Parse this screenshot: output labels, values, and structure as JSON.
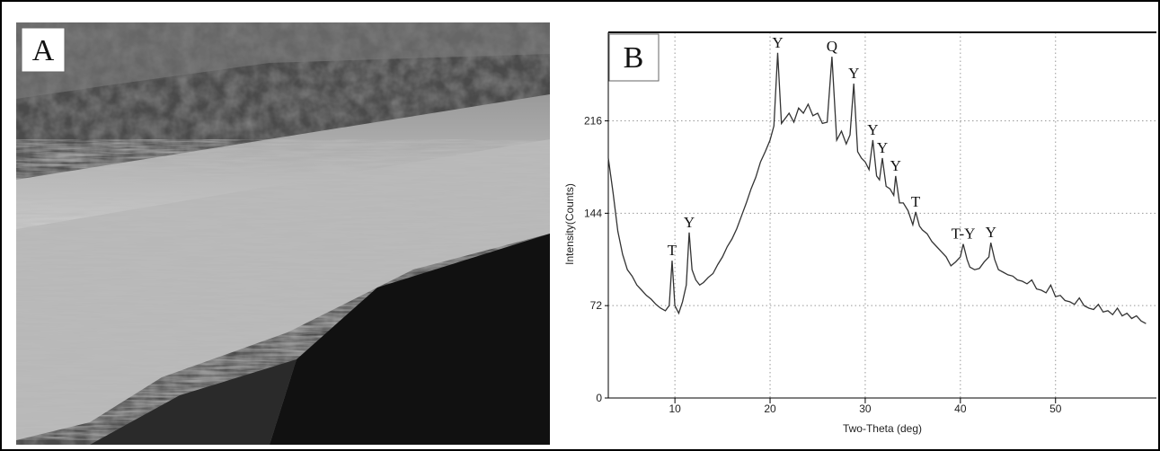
{
  "panel_a": {
    "label": "A"
  },
  "chart_data": {
    "type": "line",
    "panel_label": "B",
    "x_label": "Two-Theta (deg)",
    "y_label": "Intensity(Counts)",
    "color": "#333333",
    "xlim": [
      3,
      60.6
    ],
    "ylim": [
      0,
      285
    ],
    "xticks": [
      10,
      20,
      30,
      40,
      50
    ],
    "yticks": [
      0,
      72,
      144,
      216
    ],
    "grid": true,
    "x": [
      3,
      3.5,
      4,
      4.5,
      5,
      5.5,
      6,
      6.5,
      7,
      7.5,
      8,
      8.5,
      9,
      9.4,
      9.7,
      10,
      10.4,
      10.8,
      11.2,
      11.5,
      11.8,
      12.2,
      12.6,
      13,
      13.5,
      14,
      14.5,
      15,
      15.5,
      16,
      16.5,
      17,
      17.5,
      18,
      18.5,
      19,
      19.5,
      20,
      20.4,
      20.8,
      21.2,
      21.6,
      22,
      22.5,
      23,
      23.5,
      24,
      24.5,
      25,
      25.5,
      26,
      26.5,
      27,
      27.5,
      28,
      28.4,
      28.8,
      29.2,
      29.6,
      30,
      30.4,
      30.8,
      31.2,
      31.5,
      31.8,
      32.2,
      32.6,
      33,
      33.2,
      33.6,
      34,
      34.5,
      35,
      35.3,
      35.7,
      36,
      36.5,
      37,
      37.5,
      38,
      38.5,
      39,
      39.5,
      40,
      40.3,
      40.7,
      41,
      41.5,
      42,
      42.5,
      43,
      43.2,
      43.6,
      44,
      44.5,
      45,
      45.5,
      46,
      46.5,
      47,
      47.5,
      48,
      48.5,
      49,
      49.5,
      50,
      50.5,
      51,
      51.5,
      52,
      52.5,
      53,
      53.5,
      54,
      54.5,
      55,
      55.5,
      56,
      56.5,
      57,
      57.5,
      58,
      58.5,
      59,
      59.5
    ],
    "values": [
      187,
      160,
      130,
      112,
      100,
      95,
      88,
      84,
      80,
      77,
      73,
      70,
      68,
      72,
      107,
      72,
      66,
      75,
      88,
      129,
      100,
      92,
      88,
      90,
      94,
      97,
      104,
      110,
      118,
      124,
      132,
      142,
      152,
      163,
      172,
      184,
      192,
      201,
      212,
      269,
      214,
      218,
      222,
      215,
      226,
      222,
      229,
      220,
      222,
      214,
      215,
      266,
      201,
      208,
      198,
      205,
      245,
      192,
      187,
      184,
      178,
      201,
      173,
      170,
      187,
      165,
      163,
      158,
      173,
      152,
      152,
      146,
      135,
      145,
      134,
      131,
      128,
      122,
      118,
      114,
      110,
      103,
      106,
      110,
      120,
      108,
      102,
      100,
      101,
      106,
      110,
      121,
      108,
      100,
      98,
      96,
      95,
      92,
      91,
      89,
      92,
      85,
      84,
      82,
      88,
      79,
      80,
      76,
      75,
      73,
      78,
      72,
      70,
      69,
      73,
      67,
      68,
      65,
      70,
      64,
      66,
      62,
      64,
      60,
      58
    ],
    "annotations": [
      {
        "text": "T",
        "x": 9.7
      },
      {
        "text": "Y",
        "x": 11.5
      },
      {
        "text": "Y",
        "x": 20.8
      },
      {
        "text": "Q",
        "x": 26.5
      },
      {
        "text": "Y",
        "x": 28.8
      },
      {
        "text": "Y",
        "x": 30.8
      },
      {
        "text": "Y",
        "x": 31.8
      },
      {
        "text": "Y",
        "x": 33.2
      },
      {
        "text": "T",
        "x": 35.3
      },
      {
        "text": "T-Y",
        "x": 40.3
      },
      {
        "text": "Y",
        "x": 43.2
      }
    ]
  }
}
